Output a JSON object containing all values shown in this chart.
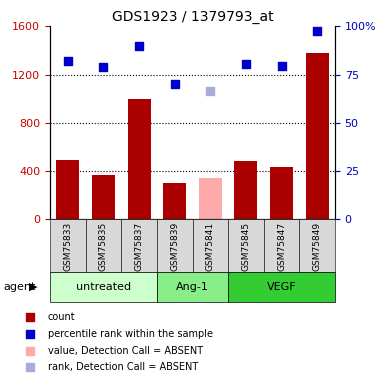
{
  "title": "GDS1923 / 1379793_at",
  "samples": [
    "GSM75833",
    "GSM75835",
    "GSM75837",
    "GSM75839",
    "GSM75841",
    "GSM75845",
    "GSM75847",
    "GSM75849"
  ],
  "bar_values": [
    490,
    370,
    1000,
    300,
    340,
    480,
    430,
    1380
  ],
  "bar_colors": [
    "#aa0000",
    "#aa0000",
    "#aa0000",
    "#aa0000",
    "#ffaaaa",
    "#aa0000",
    "#aa0000",
    "#aa0000"
  ],
  "scatter_values": [
    1310,
    1260,
    1440,
    1120,
    1060,
    1290,
    1270,
    1560
  ],
  "scatter_colors": [
    "#0000cc",
    "#0000cc",
    "#0000cc",
    "#0000cc",
    "#aaaadd",
    "#0000cc",
    "#0000cc",
    "#0000cc"
  ],
  "groups": [
    {
      "label": "untreated",
      "start": 0,
      "end": 3,
      "color": "#ccffcc"
    },
    {
      "label": "Ang-1",
      "start": 3,
      "end": 5,
      "color": "#88ee88"
    },
    {
      "label": "VEGF",
      "start": 5,
      "end": 8,
      "color": "#33cc33"
    }
  ],
  "ylim_left": [
    0,
    1600
  ],
  "ylim_right": [
    0,
    100
  ],
  "yticks_left": [
    0,
    400,
    800,
    1200,
    1600
  ],
  "yticks_right": [
    0,
    25,
    50,
    75,
    100
  ],
  "ylabel_left_color": "#cc0000",
  "ylabel_right_color": "#0000bb",
  "legend_items": [
    {
      "label": "count",
      "color": "#aa0000"
    },
    {
      "label": "percentile rank within the sample",
      "color": "#0000cc"
    },
    {
      "label": "value, Detection Call = ABSENT",
      "color": "#ffaaaa"
    },
    {
      "label": "rank, Detection Call = ABSENT",
      "color": "#aaaadd"
    }
  ],
  "agent_label": "agent",
  "background_color": "#ffffff"
}
